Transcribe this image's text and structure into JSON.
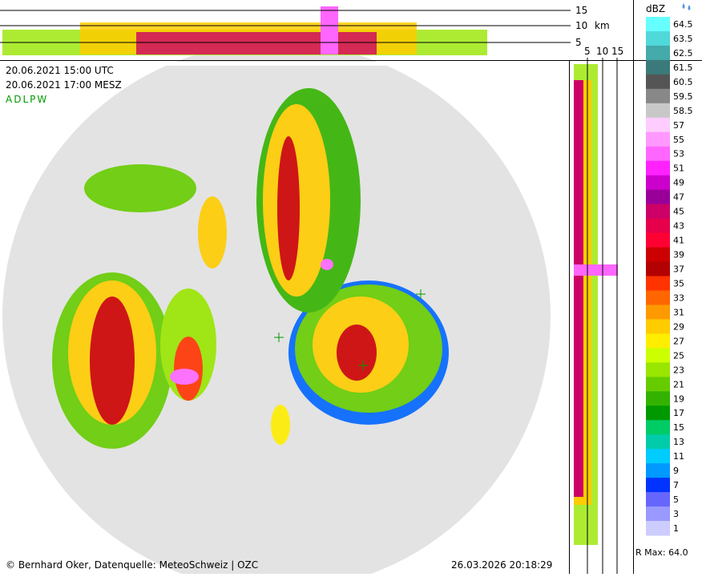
{
  "header": {
    "time_utc": "20.06.2021 15:00 UTC",
    "time_local": "20.06.2021 17:00 MESZ",
    "product": "ADLPW"
  },
  "top_profile": {
    "labels": [
      "15",
      "10",
      "km",
      "5"
    ]
  },
  "side_profile": {
    "labels": [
      "5",
      "10",
      "15"
    ]
  },
  "legend": {
    "title": "dBZ",
    "entries": [
      {
        "label": "64.5",
        "color": "#66ffff"
      },
      {
        "label": "63.5",
        "color": "#4fd9d9"
      },
      {
        "label": "62.5",
        "color": "#44aaaa"
      },
      {
        "label": "61.5",
        "color": "#3b7a7a"
      },
      {
        "label": "60.5",
        "color": "#555555"
      },
      {
        "label": "59.5",
        "color": "#888888"
      },
      {
        "label": "58.5",
        "color": "#c8c8c8"
      },
      {
        "label": "57",
        "color": "#ffccff"
      },
      {
        "label": "55",
        "color": "#ff99ff"
      },
      {
        "label": "53",
        "color": "#ff66ff"
      },
      {
        "label": "51",
        "color": "#ff22ff"
      },
      {
        "label": "49",
        "color": "#cc00cc"
      },
      {
        "label": "47",
        "color": "#990099"
      },
      {
        "label": "45",
        "color": "#cc0066"
      },
      {
        "label": "43",
        "color": "#e6004c"
      },
      {
        "label": "41",
        "color": "#ff0033"
      },
      {
        "label": "39",
        "color": "#cc0000"
      },
      {
        "label": "37",
        "color": "#b30000"
      },
      {
        "label": "35",
        "color": "#ff3300"
      },
      {
        "label": "33",
        "color": "#ff6600"
      },
      {
        "label": "31",
        "color": "#ff9900"
      },
      {
        "label": "29",
        "color": "#ffcc00"
      },
      {
        "label": "27",
        "color": "#ffee00"
      },
      {
        "label": "25",
        "color": "#ccff00"
      },
      {
        "label": "23",
        "color": "#99e600"
      },
      {
        "label": "21",
        "color": "#66cc00"
      },
      {
        "label": "19",
        "color": "#33b300"
      },
      {
        "label": "17",
        "color": "#009900"
      },
      {
        "label": "15",
        "color": "#00cc66"
      },
      {
        "label": "13",
        "color": "#00ccaa"
      },
      {
        "label": "11",
        "color": "#00ccff"
      },
      {
        "label": "9",
        "color": "#0099ff"
      },
      {
        "label": "7",
        "color": "#0033ff"
      },
      {
        "label": "5",
        "color": "#6666ff"
      },
      {
        "label": "3",
        "color": "#9999ff"
      },
      {
        "label": "1",
        "color": "#ccccff"
      }
    ]
  },
  "footer": {
    "credit": "© Bernhard Oker, Datenquelle: MeteoSchweiz | OZC",
    "timestamp": "26.03.2026 20:18:29",
    "rmax": "R Max: 64.0"
  }
}
